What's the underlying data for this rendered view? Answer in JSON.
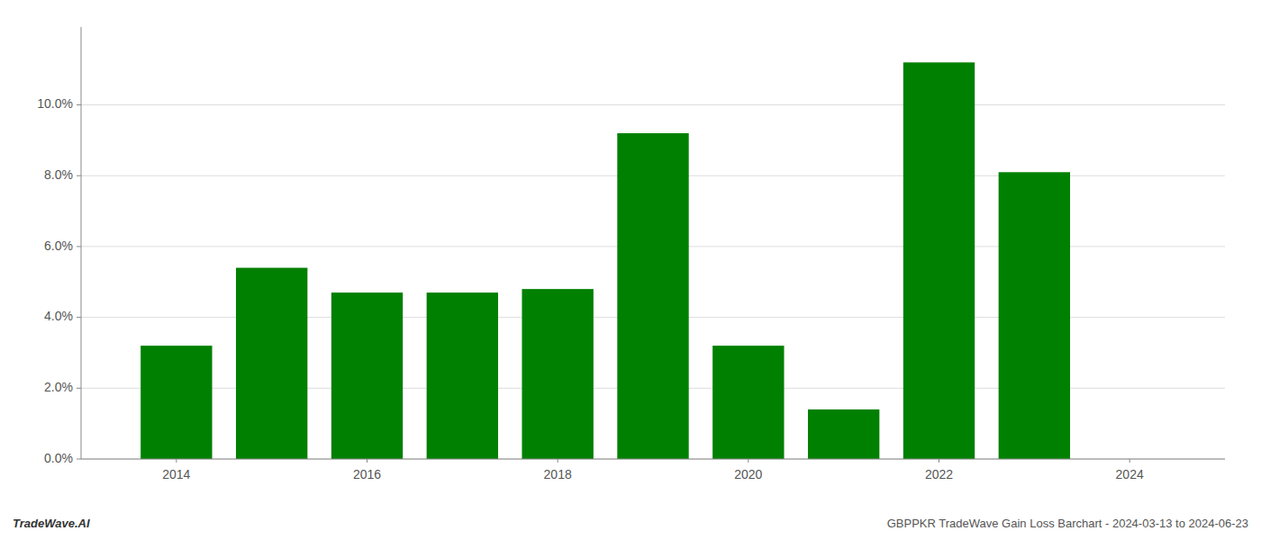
{
  "chart_data": {
    "type": "bar",
    "x": [
      2014,
      2015,
      2016,
      2017,
      2018,
      2019,
      2020,
      2021,
      2022,
      2023
    ],
    "values": [
      0.032,
      0.054,
      0.047,
      0.047,
      0.048,
      0.092,
      0.032,
      0.014,
      0.112,
      0.081
    ],
    "color": "#008000",
    "xlim": [
      2013.0,
      2025.0
    ],
    "xticks": [
      2014,
      2016,
      2018,
      2020,
      2022,
      2024
    ],
    "ylim": [
      0.0,
      0.122
    ],
    "yticks": [
      {
        "value": 0.0,
        "label": "0.0%"
      },
      {
        "value": 0.02,
        "label": "2.0%"
      },
      {
        "value": 0.04,
        "label": "4.0%"
      },
      {
        "value": 0.06,
        "label": "6.0%"
      },
      {
        "value": 0.08,
        "label": "8.0%"
      },
      {
        "value": 0.1,
        "label": "10.0%"
      }
    ],
    "grid": true,
    "annotations": [
      "TradeWave.AI",
      "GBPPKR TradeWave Gain Loss Barchart - 2024-03-13 to 2024-06-23"
    ]
  }
}
